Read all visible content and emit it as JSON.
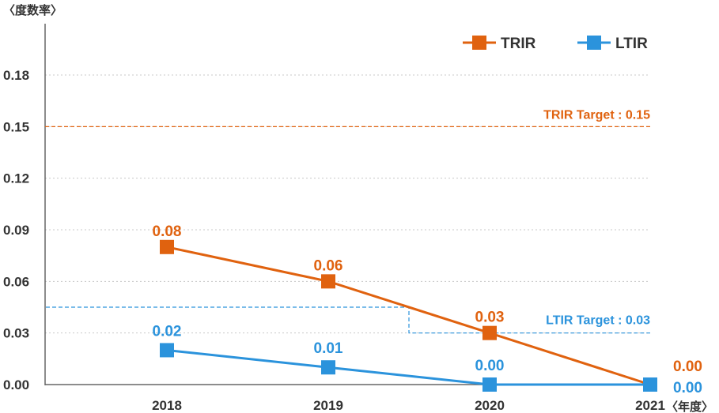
{
  "chart_data": {
    "type": "line",
    "y_unit_label": "〈度数率〉",
    "x_unit_label": "〈年度〉",
    "categories": [
      "2018",
      "2019",
      "2020",
      "2021"
    ],
    "y_ticks": [
      "0.00",
      "0.03",
      "0.06",
      "0.09",
      "0.12",
      "0.15",
      "0.18"
    ],
    "ylim": [
      0,
      0.21
    ],
    "grid": true,
    "legend_position": "top-right",
    "series": [
      {
        "name": "TRIR",
        "color": "#e0620f",
        "values": [
          0.08,
          0.06,
          0.03,
          0.0
        ],
        "labels": [
          "0.08",
          "0.06",
          "0.03",
          "0.00"
        ]
      },
      {
        "name": "LTIR",
        "color": "#2b93dc",
        "values": [
          0.02,
          0.01,
          0.0,
          0.0
        ],
        "labels": [
          "0.02",
          "0.01",
          "0.00",
          "0.00"
        ]
      }
    ],
    "targets": [
      {
        "name": "TRIR",
        "label": "TRIR Target : 0.15",
        "color": "#e0620f"
      },
      {
        "name": "LTIR",
        "label": "LTIR Target : 0.03",
        "color": "#2b93dc",
        "segments": [
          {
            "value": 0.045,
            "from_category": -0.75,
            "to_category": 1.5
          },
          {
            "value": 0.03,
            "from_category": 1.5,
            "to_category": 3
          }
        ]
      }
    ]
  }
}
